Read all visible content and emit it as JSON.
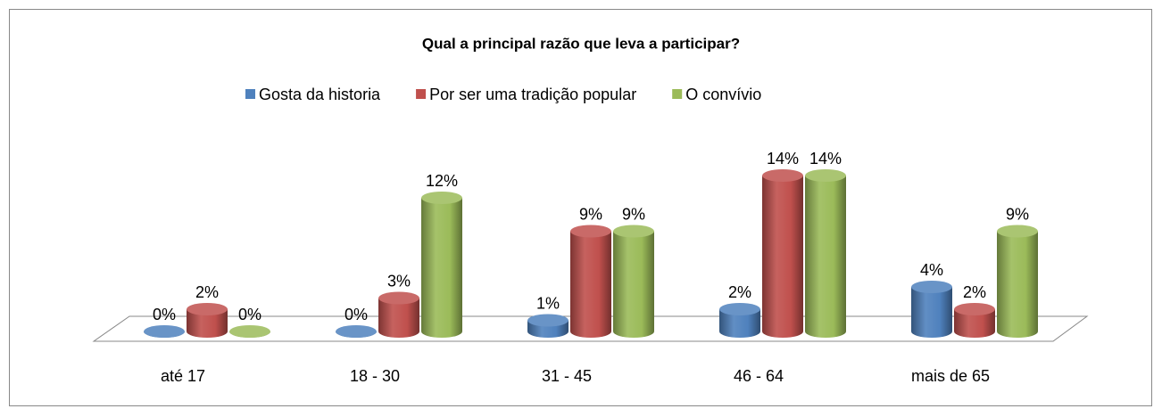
{
  "chart_data": {
    "type": "bar3d",
    "title": "Qual a principal razão que  leva a participar?",
    "categories": [
      "até 17",
      "18 - 30",
      "31 - 45",
      "46 - 64",
      "mais de 65"
    ],
    "series": [
      {
        "name": "Gosta da historia",
        "color": "#4f81bd",
        "values": [
          0,
          0,
          1,
          2,
          4
        ],
        "value_labels": [
          "0%",
          "0%",
          "1%",
          "2%",
          "4%"
        ]
      },
      {
        "name": "Por ser uma tradição popular",
        "color": "#c0504d",
        "values": [
          2,
          3,
          9,
          14,
          2
        ],
        "value_labels": [
          "2%",
          "3%",
          "9%",
          "14%",
          "2%"
        ]
      },
      {
        "name": "O convívio",
        "color": "#9bbb59",
        "values": [
          0,
          12,
          9,
          14,
          9
        ],
        "value_labels": [
          "0%",
          "12%",
          "9%",
          "14%",
          "9%"
        ]
      }
    ],
    "legend": "top"
  }
}
